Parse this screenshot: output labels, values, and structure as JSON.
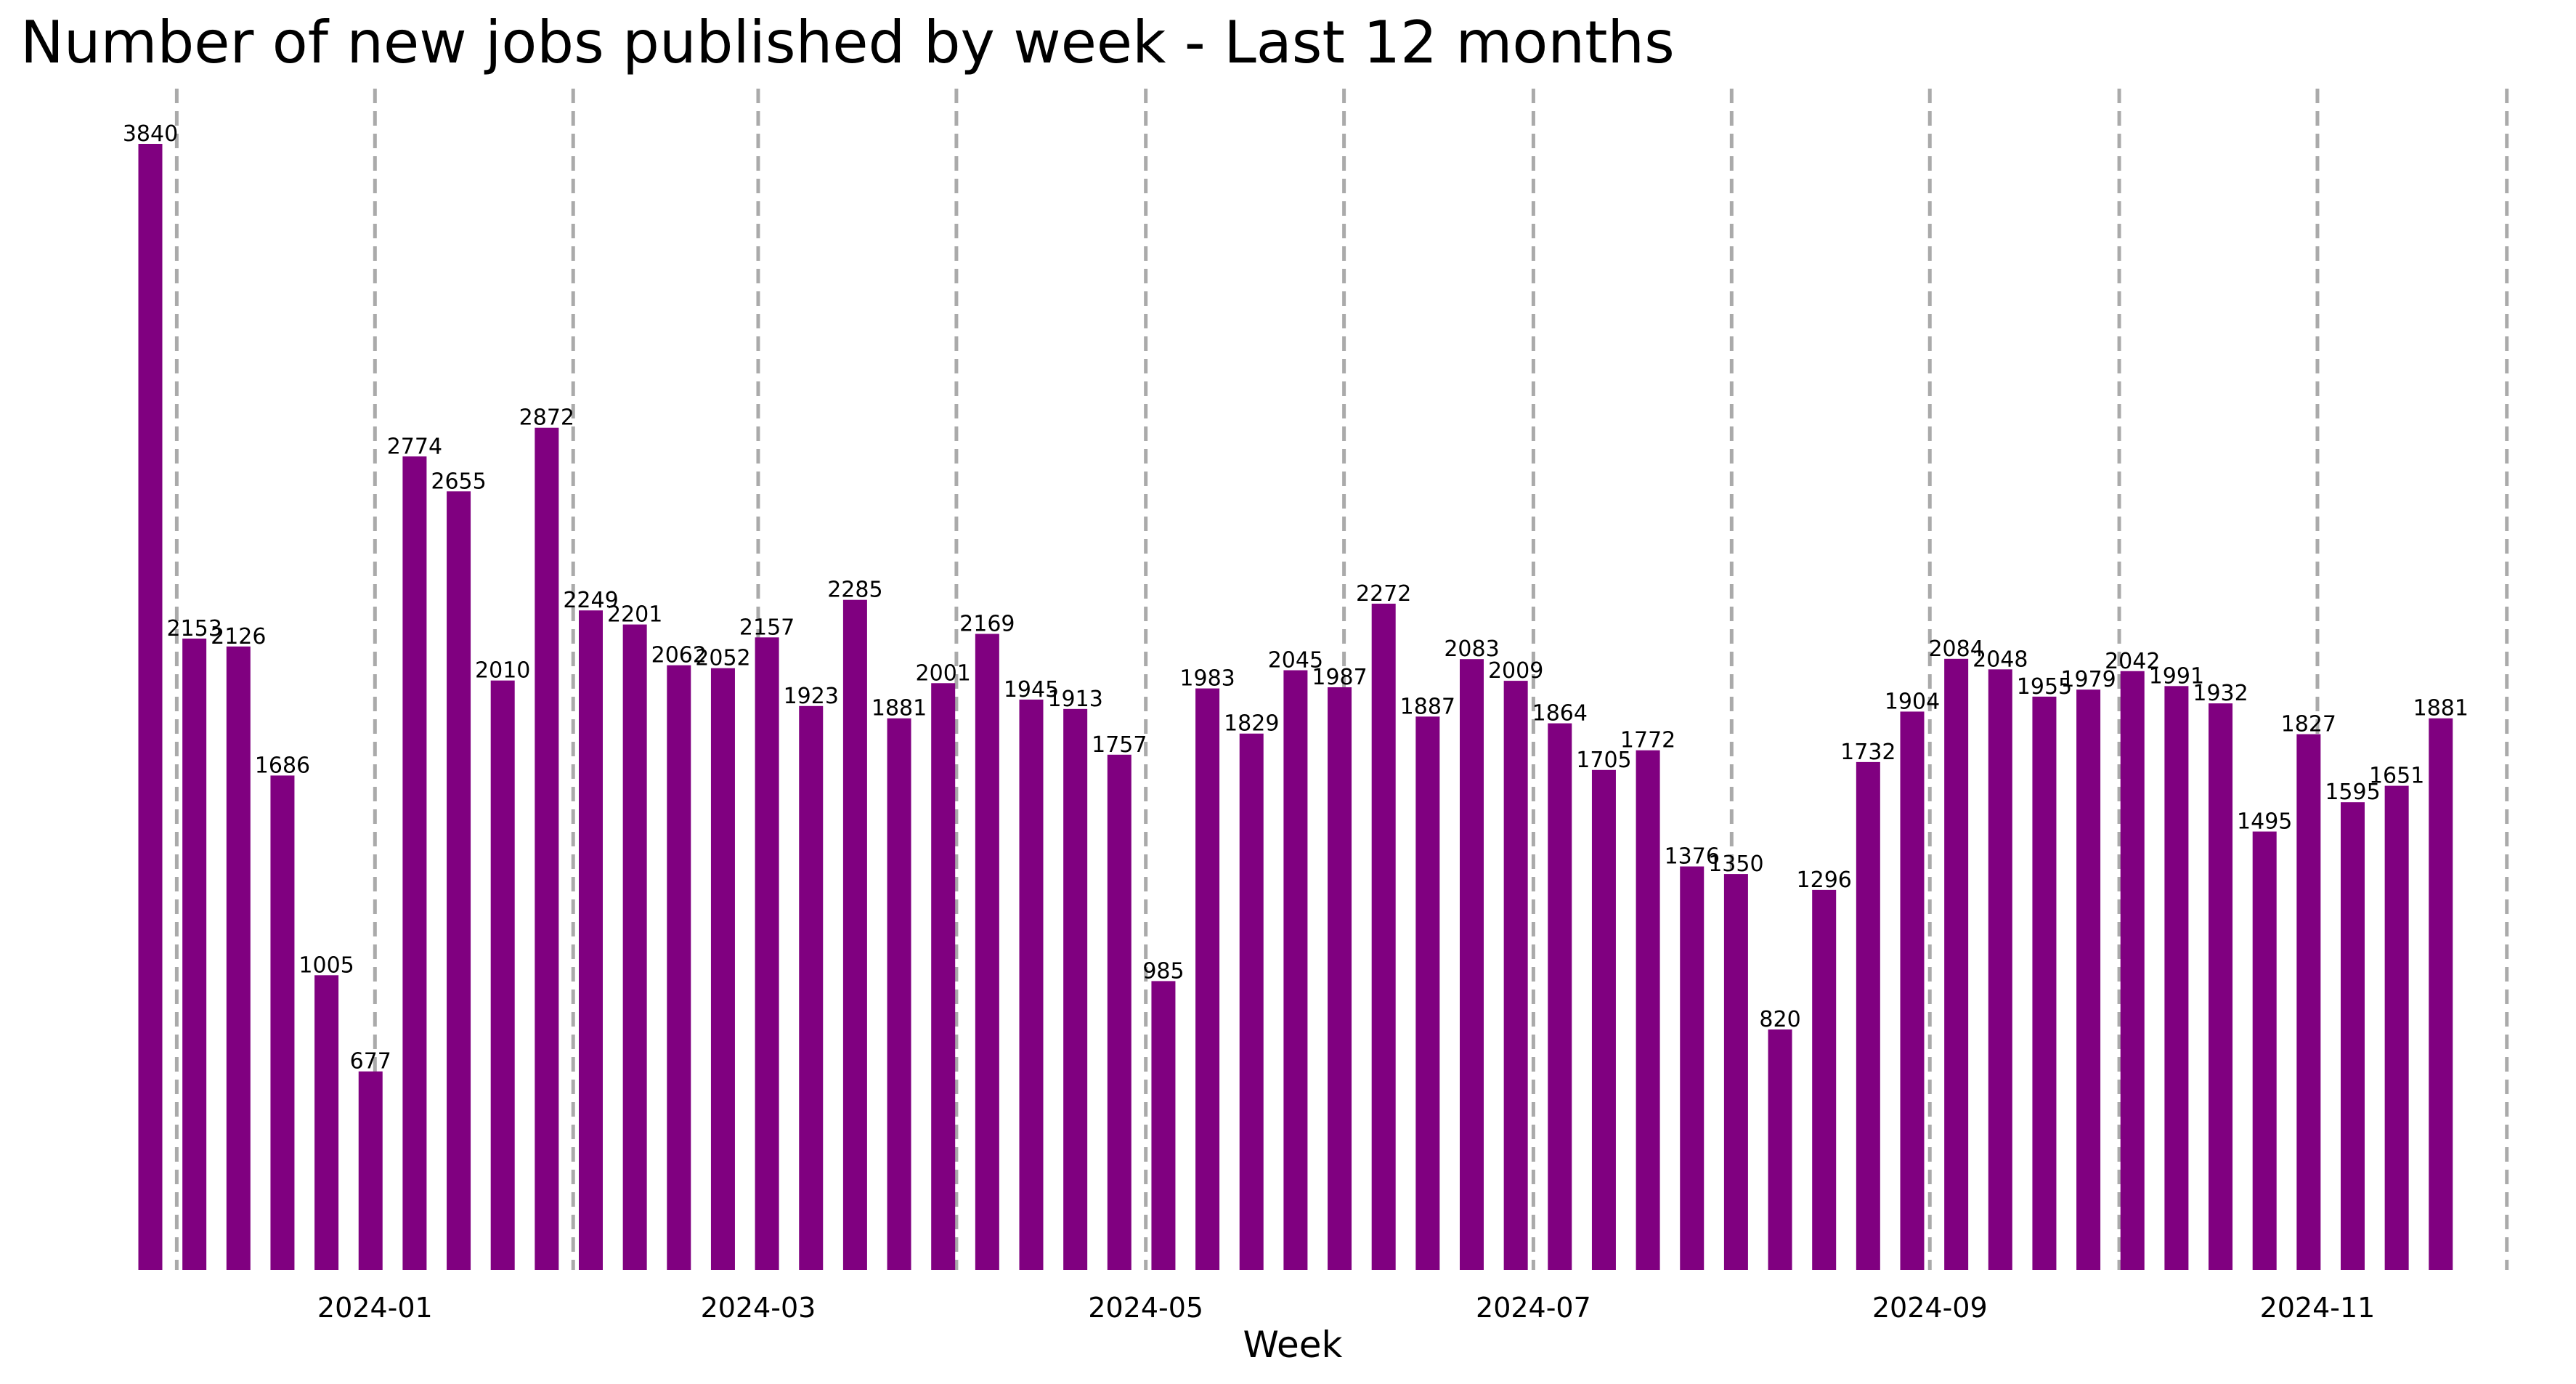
{
  "chart_data": {
    "type": "bar",
    "title": "Number of new jobs published by week - Last 12 months",
    "xlabel": "Week",
    "ylabel": "",
    "bar_color": "#800080",
    "month_line_color": "#aaaaaa",
    "values": [
      3840,
      2153,
      2126,
      1686,
      1005,
      677,
      2774,
      2655,
      2010,
      2872,
      2249,
      2201,
      2062,
      2052,
      2157,
      1923,
      2285,
      1881,
      2001,
      2169,
      1945,
      1913,
      1757,
      985,
      1983,
      1829,
      2045,
      1987,
      2272,
      1887,
      2083,
      2009,
      1864,
      1705,
      1772,
      1376,
      1350,
      820,
      1296,
      1732,
      1904,
      2084,
      2048,
      1955,
      1979,
      2042,
      1991,
      1932,
      1495,
      1827,
      1595,
      1651,
      1881
    ],
    "month_boundaries_at_week": [
      0.6,
      5.1,
      9.6,
      13.8,
      18.3,
      22.6,
      27.1,
      31.4,
      35.9,
      40.4,
      44.7,
      49.2,
      53.5
    ],
    "tick_labels": [
      {
        "label": "2024-01",
        "at_week": 5.1
      },
      {
        "label": "2024-03",
        "at_week": 13.8
      },
      {
        "label": "2024-05",
        "at_week": 22.6
      },
      {
        "label": "2024-07",
        "at_week": 31.4
      },
      {
        "label": "2024-09",
        "at_week": 40.4
      },
      {
        "label": "2024-11",
        "at_week": 49.2
      }
    ],
    "ylim": [
      0,
      3840
    ],
    "grid": false,
    "legend": "none"
  }
}
